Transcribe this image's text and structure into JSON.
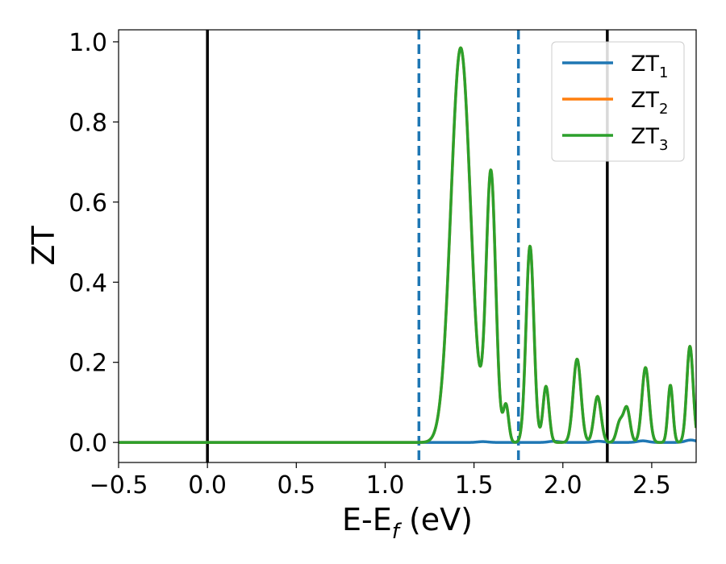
{
  "chart_data": {
    "type": "line",
    "xlabel_main": "E-E",
    "xlabel_sub": "f",
    "xlabel_unit": " (eV)",
    "ylabel": "ZT",
    "xlim": [
      -0.5,
      2.75
    ],
    "ylim": [
      -0.05,
      1.03
    ],
    "x_ticks": [
      -0.5,
      0.0,
      0.5,
      1.0,
      1.5,
      2.0,
      2.5
    ],
    "x_tick_labels": [
      "−0.5",
      "0.0",
      "0.5",
      "1.0",
      "1.5",
      "2.0",
      "2.5"
    ],
    "y_ticks": [
      0.0,
      0.2,
      0.4,
      0.6,
      0.8,
      1.0
    ],
    "y_tick_labels": [
      "0.0",
      "0.2",
      "0.4",
      "0.6",
      "0.8",
      "1.0"
    ],
    "grid": false,
    "legend_position": "top-right",
    "vertical_lines": [
      {
        "x": 0.0,
        "style": "solid",
        "color": "#000000"
      },
      {
        "x": 2.25,
        "style": "solid",
        "color": "#000000"
      },
      {
        "x": 1.19,
        "style": "dashed",
        "color": "#1f77b4"
      },
      {
        "x": 1.75,
        "style": "dashed",
        "color": "#1f77b4"
      }
    ],
    "series": [
      {
        "name_main": "ZT",
        "name_sub": "1",
        "color": "#1f77b4",
        "baseline": [
          [
            -0.5,
            0.0
          ],
          [
            1.2,
            0.0
          ],
          [
            2.75,
            0.0
          ]
        ],
        "peaks": [
          [
            1.55,
            0.002,
            0.03
          ],
          [
            1.95,
            0.003,
            0.03
          ],
          [
            2.2,
            0.003,
            0.03
          ],
          [
            2.45,
            0.004,
            0.03
          ],
          [
            2.72,
            0.006,
            0.03
          ]
        ]
      },
      {
        "name_main": "ZT",
        "name_sub": "2",
        "color": "#ff7f0e",
        "baseline": [
          [
            -0.5,
            0.0
          ],
          [
            1.15,
            0.0
          ],
          [
            2.75,
            0.0
          ]
        ],
        "peaks": [
          [
            1.425,
            0.985,
            0.055
          ],
          [
            1.595,
            0.672,
            0.027
          ],
          [
            1.68,
            0.092,
            0.015
          ],
          [
            1.815,
            0.49,
            0.022
          ],
          [
            1.905,
            0.14,
            0.017
          ],
          [
            2.08,
            0.208,
            0.022
          ],
          [
            2.195,
            0.115,
            0.02
          ],
          [
            2.32,
            0.05,
            0.018
          ],
          [
            2.36,
            0.085,
            0.018
          ],
          [
            2.465,
            0.187,
            0.02
          ],
          [
            2.605,
            0.143,
            0.014
          ],
          [
            2.715,
            0.24,
            0.018
          ]
        ]
      },
      {
        "name_main": "ZT",
        "name_sub": "3",
        "color": "#2ca02c",
        "baseline": [
          [
            -0.5,
            0.0
          ],
          [
            1.15,
            0.0
          ],
          [
            2.75,
            0.0
          ]
        ],
        "peaks": [
          [
            1.425,
            0.985,
            0.055
          ],
          [
            1.595,
            0.672,
            0.027
          ],
          [
            1.68,
            0.092,
            0.015
          ],
          [
            1.815,
            0.49,
            0.022
          ],
          [
            1.905,
            0.14,
            0.017
          ],
          [
            2.08,
            0.208,
            0.022
          ],
          [
            2.195,
            0.115,
            0.02
          ],
          [
            2.32,
            0.05,
            0.018
          ],
          [
            2.36,
            0.085,
            0.018
          ],
          [
            2.465,
            0.187,
            0.02
          ],
          [
            2.605,
            0.143,
            0.014
          ],
          [
            2.715,
            0.24,
            0.018
          ]
        ]
      }
    ]
  }
}
